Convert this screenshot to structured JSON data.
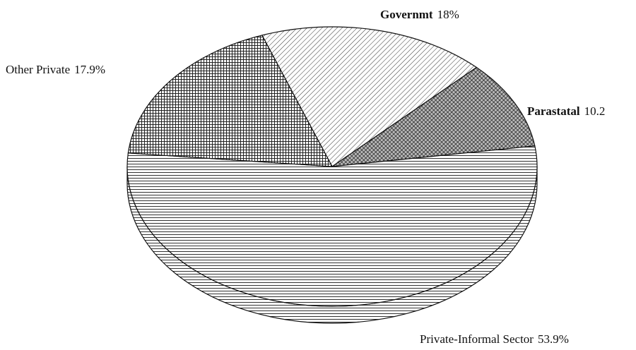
{
  "chart_data": {
    "type": "pie",
    "categories": [
      "Governmt",
      "Parastatal",
      "Private-Informal Sector",
      "Other Private"
    ],
    "values": [
      18,
      10.2,
      53.9,
      17.9
    ],
    "value_labels": [
      "18%",
      "10.2",
      "53.9%",
      "17.9%"
    ],
    "bold_names": [
      true,
      true,
      false,
      false
    ]
  }
}
